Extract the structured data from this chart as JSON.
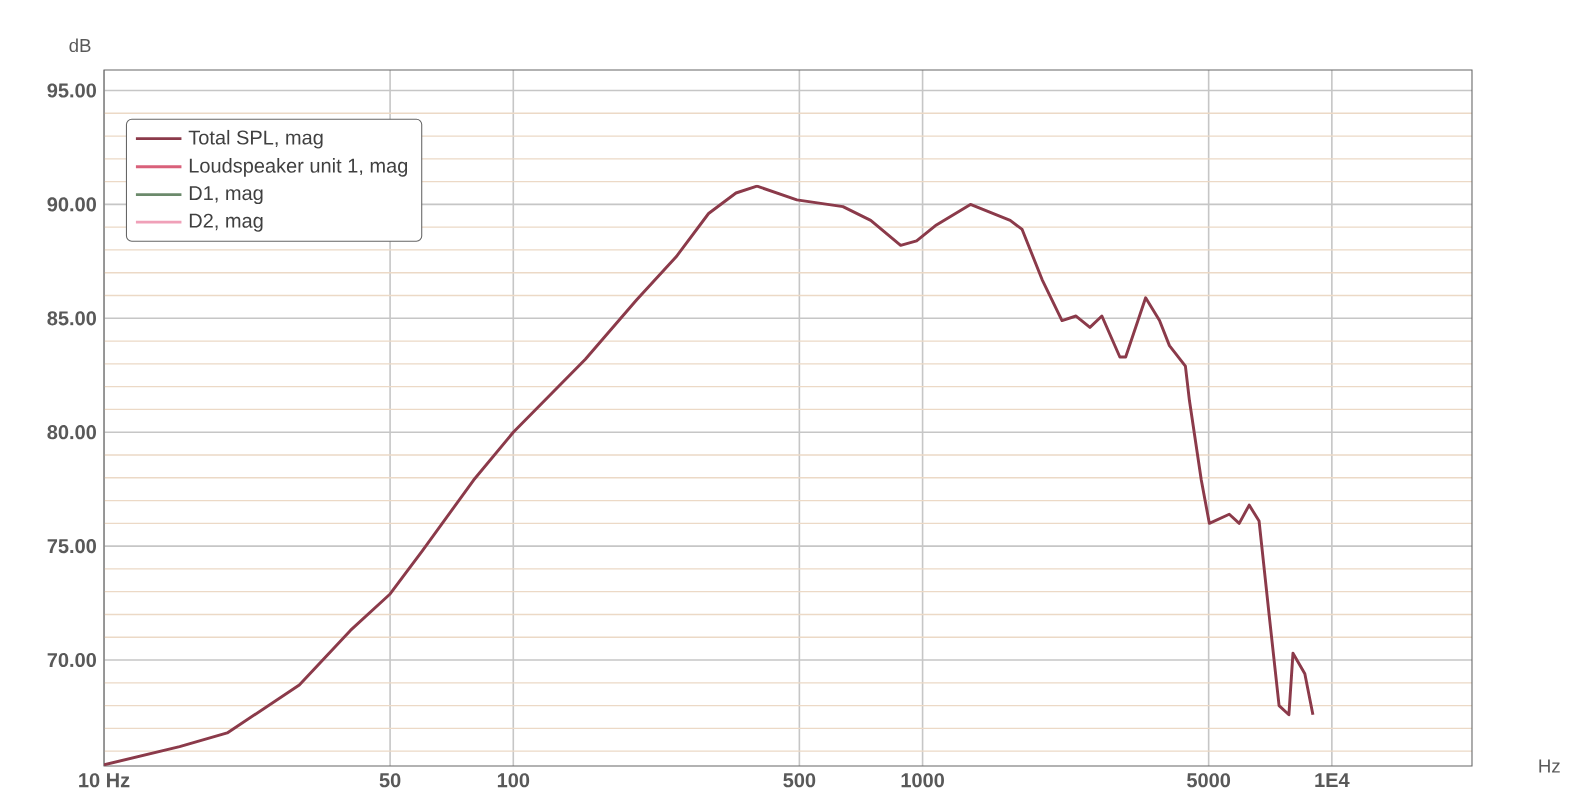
{
  "chart_data": {
    "type": "line",
    "xlabel": "Hz",
    "ylabel": "dB",
    "log": "x",
    "grid": true,
    "legend": "top left",
    "marker": "none",
    "line_style": "solid",
    "xlim": [
      10,
      22000
    ],
    "ylim": [
      65.35,
      95.9
    ],
    "xticks": [
      {
        "value": 10,
        "label": "10 Hz"
      },
      50,
      100,
      500,
      1000,
      5000,
      {
        "value": 10000,
        "label": "1E4"
      }
    ],
    "yticks": [
      {
        "value": 70,
        "label": "70.00"
      },
      {
        "value": 75,
        "label": "75.00"
      },
      {
        "value": 80,
        "label": "80.00"
      },
      {
        "value": 85,
        "label": "85.00"
      },
      {
        "value": 90,
        "label": "90.00"
      },
      {
        "value": 95,
        "label": "95.00"
      }
    ],
    "x": [
      10,
      15.3,
      20,
      30,
      40,
      50,
      60,
      80,
      100,
      150,
      200,
      250,
      300,
      350,
      394,
      493,
      639,
      747,
      884,
      967,
      1081,
      1309,
      1637,
      1751,
      1959,
      2191,
      2371,
      2564,
      2742,
      3034,
      3135,
      3508,
      3793,
      4010,
      4387,
      4487,
      4797,
      5020,
      5615,
      5938,
      6281,
      6641,
      7025,
      7432,
      7855,
      8036,
      8590,
      8990
    ],
    "series": [
      {
        "name": "Total SPL, mag",
        "color": "#8b3a4a",
        "values": [
          65.4,
          66.2,
          66.8,
          68.9,
          71.3,
          72.9,
          74.8,
          77.9,
          80.0,
          83.2,
          85.8,
          87.7,
          89.6,
          90.5,
          90.8,
          90.2,
          89.9,
          89.3,
          88.2,
          88.4,
          89.1,
          90.0,
          89.3,
          88.9,
          86.7,
          84.9,
          85.1,
          84.6,
          85.1,
          83.3,
          83.3,
          85.9,
          84.9,
          83.8,
          82.9,
          81.4,
          77.9,
          76.0,
          76.4,
          76.0,
          76.8,
          76.1,
          72.0,
          68.0,
          67.6,
          70.3,
          69.4,
          67.6
        ]
      },
      {
        "name": "Loudspeaker unit 1, mag",
        "color": "#d9607a",
        "values": [
          null,
          null,
          null,
          null,
          null,
          null,
          null,
          null,
          null,
          null,
          null,
          null,
          null,
          null,
          null,
          null,
          null,
          null,
          null,
          null,
          null,
          null,
          null,
          null,
          null,
          null,
          null,
          null,
          null,
          null,
          null,
          null,
          null,
          null,
          null,
          null,
          null,
          null,
          null,
          null,
          null,
          null,
          null,
          null,
          null,
          null,
          null,
          null
        ]
      },
      {
        "name": "D1, mag",
        "color": "#6b8a6b",
        "values": [
          null,
          null,
          null,
          null,
          null,
          null,
          null,
          null,
          null,
          null,
          null,
          null,
          null,
          null,
          null,
          null,
          null,
          null,
          null,
          null,
          null,
          null,
          null,
          null,
          null,
          null,
          null,
          null,
          null,
          null,
          null,
          null,
          null,
          null,
          null,
          null,
          null,
          null,
          null,
          null,
          null,
          null,
          null,
          null,
          null,
          null,
          null,
          null
        ]
      },
      {
        "name": "D2, mag",
        "color": "#f0a0b8",
        "values": [
          null,
          null,
          null,
          null,
          null,
          null,
          null,
          null,
          null,
          null,
          null,
          null,
          null,
          null,
          null,
          null,
          null,
          null,
          null,
          null,
          null,
          null,
          null,
          null,
          null,
          null,
          null,
          null,
          null,
          null,
          null,
          null,
          null,
          null,
          null,
          null,
          null,
          null,
          null,
          null,
          null,
          null,
          null,
          null,
          null,
          null,
          null,
          null
        ]
      }
    ]
  }
}
